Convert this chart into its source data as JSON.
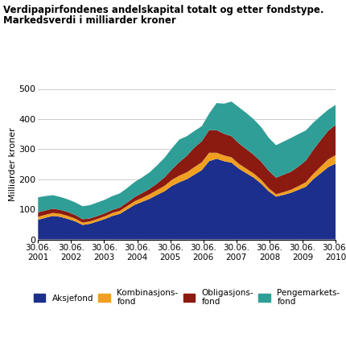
{
  "title1": "Verdipapirfondenes andelskapital totalt og etter fondstype.",
  "title2": "Markedsverdi i milliarder kroner",
  "ylabel": "Milliarder kroner",
  "ylim": [
    0,
    500
  ],
  "yticks": [
    0,
    100,
    200,
    300,
    400,
    500
  ],
  "colors": {
    "aksjefond": "#1c2f8c",
    "kombinasjon": "#f0a020",
    "obligasjon": "#8b1a10",
    "pengemarked": "#2e9e96"
  },
  "x_labels": [
    "30.06.\n2001",
    "30.06.\n2002",
    "30.06.\n2003",
    "30.06.\n2004",
    "30.06.\n2005",
    "30.06.\n2006",
    "30.06.\n2007",
    "30.06.\n2008",
    "30.06.\n2009",
    "30.06.\n2010"
  ],
  "background": "#ffffff",
  "grid_color": "#cccccc",
  "aksjefond": [
    65,
    72,
    78,
    75,
    68,
    60,
    48,
    52,
    60,
    68,
    78,
    85,
    100,
    115,
    125,
    135,
    148,
    160,
    178,
    190,
    200,
    215,
    230,
    260,
    268,
    260,
    255,
    235,
    220,
    205,
    185,
    160,
    142,
    148,
    155,
    165,
    175,
    200,
    220,
    240,
    252
  ],
  "kombinasjon": [
    10,
    10,
    10,
    10,
    10,
    9,
    8,
    8,
    8,
    9,
    10,
    10,
    11,
    12,
    13,
    15,
    16,
    18,
    20,
    22,
    23,
    25,
    26,
    28,
    20,
    19,
    18,
    16,
    15,
    14,
    13,
    10,
    8,
    9,
    10,
    12,
    15,
    18,
    22,
    26,
    28
  ],
  "obligasjon": [
    15,
    14,
    14,
    13,
    13,
    12,
    11,
    10,
    10,
    10,
    10,
    11,
    12,
    14,
    16,
    18,
    22,
    28,
    35,
    45,
    55,
    65,
    70,
    75,
    75,
    72,
    70,
    68,
    65,
    62,
    60,
    58,
    55,
    58,
    60,
    65,
    72,
    80,
    88,
    95,
    100
  ],
  "pengemarked": [
    50,
    48,
    45,
    43,
    42,
    42,
    43,
    44,
    45,
    45,
    46,
    47,
    48,
    50,
    52,
    55,
    60,
    65,
    70,
    75,
    65,
    55,
    50,
    55,
    90,
    100,
    115,
    120,
    120,
    118,
    115,
    110,
    108,
    110,
    112,
    108,
    100,
    90,
    80,
    70,
    67
  ]
}
